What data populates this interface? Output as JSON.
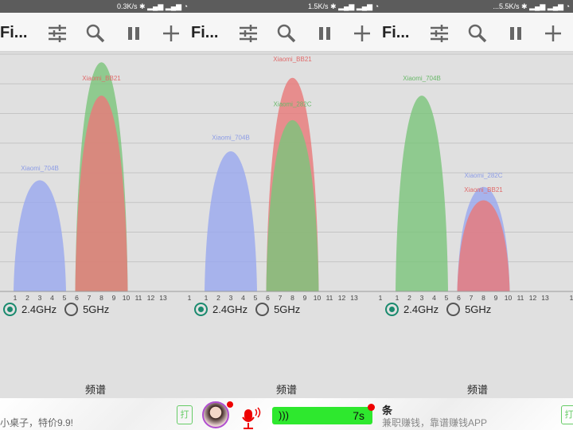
{
  "colors": {
    "blue": "#9aa8ee",
    "green": "#7cc47c",
    "red": "#e87a7a",
    "accent": "#1a8a6e"
  },
  "channel_labels": [
    "1",
    "2",
    "3",
    "4",
    "5",
    "6",
    "7",
    "8",
    "9",
    "10",
    "11",
    "12",
    "13",
    "1"
  ],
  "panels": [
    {
      "status": "0.3K/s",
      "title": "Fi...",
      "band_24": "2.4GHz",
      "band_5": "5GHz",
      "band_selected": "2.4GHz",
      "tab": "频谱",
      "networks": [
        {
          "ssid": "Xiaomi_704B",
          "channel": 3,
          "level": 0.5,
          "color": "blue",
          "labeled": true
        },
        {
          "ssid": "",
          "channel": 8,
          "level": 1.03,
          "color": "green",
          "labeled": false
        },
        {
          "ssid": "Xiaomi_BB21",
          "channel": 8,
          "level": 0.88,
          "color": "red",
          "labeled": true
        }
      ]
    },
    {
      "status": "1.5K/s",
      "title": "Fi...",
      "band_24": "2.4GHz",
      "band_5": "5GHz",
      "band_selected": "2.4GHz",
      "tab": "频谱",
      "networks": [
        {
          "ssid": "Xiaomi_704B",
          "channel": 3,
          "level": 0.63,
          "color": "blue",
          "labeled": true
        },
        {
          "ssid": "Xiaomi_BB21",
          "channel": 8,
          "level": 0.96,
          "color": "red",
          "labeled": true
        },
        {
          "ssid": "Xiaomi_282C",
          "channel": 8,
          "level": 0.77,
          "color": "green",
          "labeled": true
        }
      ]
    },
    {
      "status": "...5.5K/s",
      "title": "Fi...",
      "band_24": "2.4GHz",
      "band_5": "5GHz",
      "band_selected": "2.4GHz",
      "tab": "频谱",
      "networks": [
        {
          "ssid": "Xiaomi_704B",
          "channel": 3,
          "level": 0.88,
          "color": "green",
          "labeled": true
        },
        {
          "ssid": "Xiaomi_282C",
          "channel": 8,
          "level": 0.47,
          "color": "blue",
          "labeled": true
        },
        {
          "ssid": "Xiaomi_BB21",
          "channel": 8,
          "level": 0.41,
          "color": "red",
          "labeled": true
        }
      ]
    }
  ],
  "ads": {
    "left_text": "小桌子，特价9.9!",
    "left_button": "打",
    "voice_duration": "7s",
    "title": "条",
    "subtitle": "兼职赚钱，靠谱赚钱APP",
    "right_button": "打"
  }
}
